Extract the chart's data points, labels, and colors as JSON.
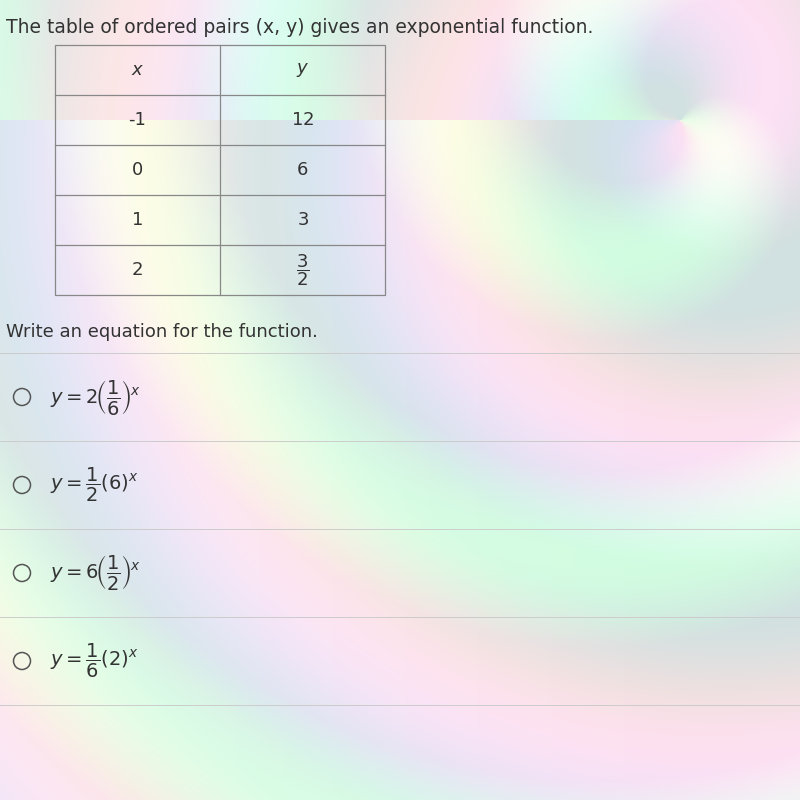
{
  "title": "The table of ordered pairs (x, y) gives an exponential function.",
  "table_x": [
    "-1",
    "0",
    "1",
    "2"
  ],
  "subtitle": "Write an equation for the function.",
  "bg_color_left": "#f0eeee",
  "bg_color_right": "#e8f0e8",
  "text_color": "#333333",
  "table_border_color": "#888888",
  "font_size_title": 13.5,
  "font_size_table": 13,
  "font_size_options": 13,
  "font_size_subtitle": 13,
  "divider_color": "#cccccc",
  "circle_color": "#555555"
}
